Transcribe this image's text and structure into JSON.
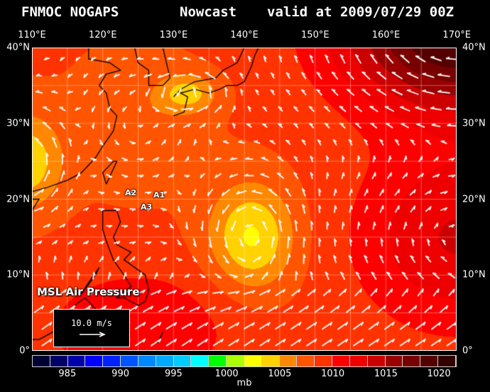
{
  "header": {
    "source": "FNMOC NOGAPS",
    "product": "Nowcast",
    "valid": "valid at 2009/07/29 00Z"
  },
  "map": {
    "lon_labels": [
      "110°E",
      "120°E",
      "130°E",
      "140°E",
      "150°E",
      "160°E",
      "170°E"
    ],
    "lat_labels": [
      "40°N",
      "30°N",
      "20°N",
      "10°N",
      "0°"
    ],
    "markers": [
      "A1",
      "A2",
      "A3"
    ],
    "layer_label": "MSL Air Pressure",
    "vector_reference": "10.0 m/s"
  },
  "colorbar": {
    "unit": "mb",
    "tick_labels": [
      "985",
      "990",
      "995",
      "1000",
      "1005",
      "1010",
      "1015",
      "1020"
    ],
    "colors": [
      "#000033",
      "#000066",
      "#0000aa",
      "#0000ff",
      "#0022ff",
      "#0055ff",
      "#0088ff",
      "#00aaff",
      "#00ccff",
      "#00ffff",
      "#00ff00",
      "#aaff00",
      "#ffff00",
      "#ffd200",
      "#ff8800",
      "#ff5500",
      "#ff3300",
      "#ff0000",
      "#ee0000",
      "#cc0000",
      "#990000",
      "#770000",
      "#550000",
      "#330000"
    ]
  }
}
